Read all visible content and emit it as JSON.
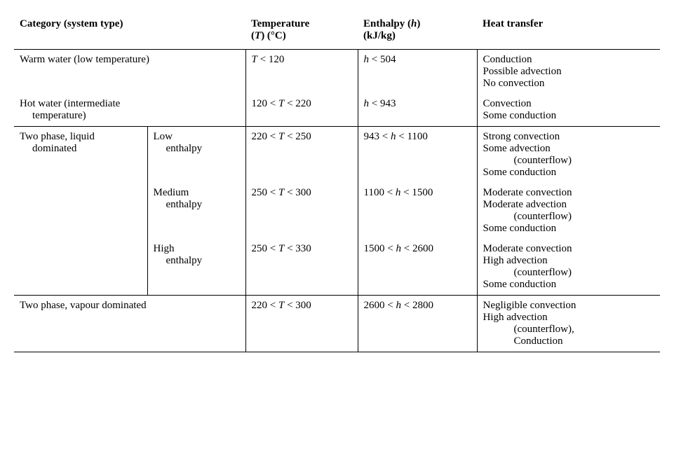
{
  "headers": {
    "category": "Category (system type)",
    "temperature_label": "Temperature",
    "temperature_unit_prefix": "(",
    "temperature_var": "T",
    "temperature_unit_suffix": ") (°C)",
    "enthalpy_label": "Enthalpy (",
    "enthalpy_var": "h",
    "enthalpy_label_close": ")",
    "enthalpy_unit": "(kJ/kg)",
    "heat_transfer": "Heat transfer"
  },
  "rows": {
    "warm_water": {
      "category": "Warm water (low temperature)",
      "temp_var": "T",
      "temp_rel": " < 120",
      "enth_var": "h",
      "enth_rel": " < 504",
      "ht1": "Conduction",
      "ht2": "Possible advection",
      "ht3": "No convection"
    },
    "hot_water": {
      "category_l1": "Hot water (intermediate",
      "category_l2": "temperature)",
      "temp_pre": "120 < ",
      "temp_var": "T",
      "temp_post": " < 220",
      "enth_var": "h",
      "enth_rel": " < 943",
      "ht1": "Convection",
      "ht2": "Some conduction"
    },
    "two_phase_liquid": {
      "label_l1": "Two phase, liquid",
      "label_l2": "dominated",
      "low": {
        "sub_l1": "Low",
        "sub_l2": "enthalpy",
        "temp_pre": "220 < ",
        "temp_var": "T",
        "temp_post": " < 250",
        "enth_pre": "943 < ",
        "enth_var": "h",
        "enth_post": " < 1100",
        "ht1": "Strong convection",
        "ht2": "Some advection",
        "ht2b": "(counterflow)",
        "ht3": "Some conduction"
      },
      "medium": {
        "sub_l1": "Medium",
        "sub_l2": "enthalpy",
        "temp_pre": "250 < ",
        "temp_var": "T",
        "temp_post": " < 300",
        "enth_pre": "1100 < ",
        "enth_var": "h",
        "enth_post": " < 1500",
        "ht1": "Moderate convection",
        "ht2": "Moderate advection",
        "ht2b": "(counterflow)",
        "ht3": "Some conduction"
      },
      "high": {
        "sub_l1": "High",
        "sub_l2": "enthalpy",
        "temp_pre": "250 < ",
        "temp_var": "T",
        "temp_post": " < 330",
        "enth_pre": "1500 < ",
        "enth_var": "h",
        "enth_post": " < 2600",
        "ht1": "Moderate convection",
        "ht2": "High advection",
        "ht2b": "(counterflow)",
        "ht3": "Some conduction"
      }
    },
    "two_phase_vapour": {
      "category": "Two phase, vapour dominated",
      "temp_pre": "220 < ",
      "temp_var": "T",
      "temp_post": " < 300",
      "enth_pre": "2600 < ",
      "enth_var": "h",
      "enth_post": " < 2800",
      "ht1": "Negligible convection",
      "ht2": "High advection",
      "ht2b": "(counterflow),",
      "ht3": "Conduction"
    }
  }
}
